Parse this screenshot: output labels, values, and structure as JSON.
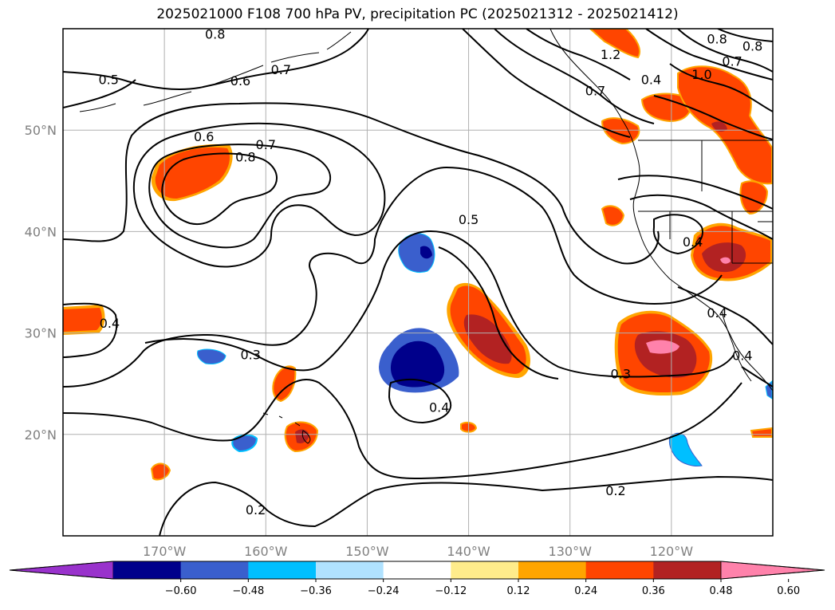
{
  "title": "2025021000 F108 700 hPa PV, precipitation PC (2025021312 - 2025021412)",
  "map": {
    "lon_range": [
      -180,
      -110
    ],
    "lat_range": [
      10,
      60
    ],
    "lat_labels": [
      "50°N",
      "40°N",
      "30°N",
      "20°N"
    ],
    "lat_values": [
      50,
      40,
      30,
      20
    ],
    "lon_labels": [
      "170°W",
      "160°W",
      "150°W",
      "140°W",
      "130°W",
      "120°W"
    ],
    "lon_values": [
      -170,
      -160,
      -150,
      -140,
      -130,
      -120
    ],
    "gridlines": true
  },
  "colorbar": {
    "ticks": [
      "−0.60",
      "−0.48",
      "−0.36",
      "−0.24",
      "−0.12",
      "0.12",
      "0.24",
      "0.36",
      "0.48",
      "0.60"
    ],
    "colors": [
      "#9932cc",
      "#00008b",
      "#3a5fcd",
      "#00bfff",
      "#b0e2ff",
      "#ffffff",
      "#ffec8b",
      "#ffa500",
      "#ff4500",
      "#b22222",
      "#ff82ab"
    ]
  },
  "contour_labels": [
    {
      "text": "0.5",
      "lon": -175.5,
      "lat": 55.0
    },
    {
      "text": "0.6",
      "lon": -166.1,
      "lat": 49.4
    },
    {
      "text": "0.8",
      "lon": -162.0,
      "lat": 47.4
    },
    {
      "text": "0.7",
      "lon": -160.0,
      "lat": 48.6
    },
    {
      "text": "0.7",
      "lon": -158.5,
      "lat": 56.0
    },
    {
      "text": "0.6",
      "lon": -162.5,
      "lat": 54.9
    },
    {
      "text": "0.8",
      "lon": -165.0,
      "lat": 59.5
    },
    {
      "text": "0.4",
      "lon": -175.4,
      "lat": 31.0
    },
    {
      "text": "0.3",
      "lon": -161.5,
      "lat": 27.9
    },
    {
      "text": "0.2",
      "lon": -161.0,
      "lat": 12.6
    },
    {
      "text": "0.5",
      "lon": -140.0,
      "lat": 41.2
    },
    {
      "text": "0.4",
      "lon": -142.9,
      "lat": 22.7
    },
    {
      "text": "0.3",
      "lon": -125.0,
      "lat": 26.0
    },
    {
      "text": "0.2",
      "lon": -125.5,
      "lat": 14.5
    },
    {
      "text": "1.2",
      "lon": -126.0,
      "lat": 57.5
    },
    {
      "text": "0.7",
      "lon": -127.5,
      "lat": 53.9
    },
    {
      "text": "0.8",
      "lon": -115.5,
      "lat": 59.0
    },
    {
      "text": "0.7",
      "lon": -114.0,
      "lat": 56.8
    },
    {
      "text": "1.0",
      "lon": -117.0,
      "lat": 55.5
    },
    {
      "text": "0.8",
      "lon": -112.0,
      "lat": 58.3
    },
    {
      "text": "0.4",
      "lon": -117.9,
      "lat": 39.0
    },
    {
      "text": "0.4",
      "lon": -113.0,
      "lat": 27.8
    },
    {
      "text": "0.4",
      "lon": -115.5,
      "lat": 32.0
    },
    {
      "text": "0.4",
      "lon": -122.0,
      "lat": 55.0
    }
  ]
}
